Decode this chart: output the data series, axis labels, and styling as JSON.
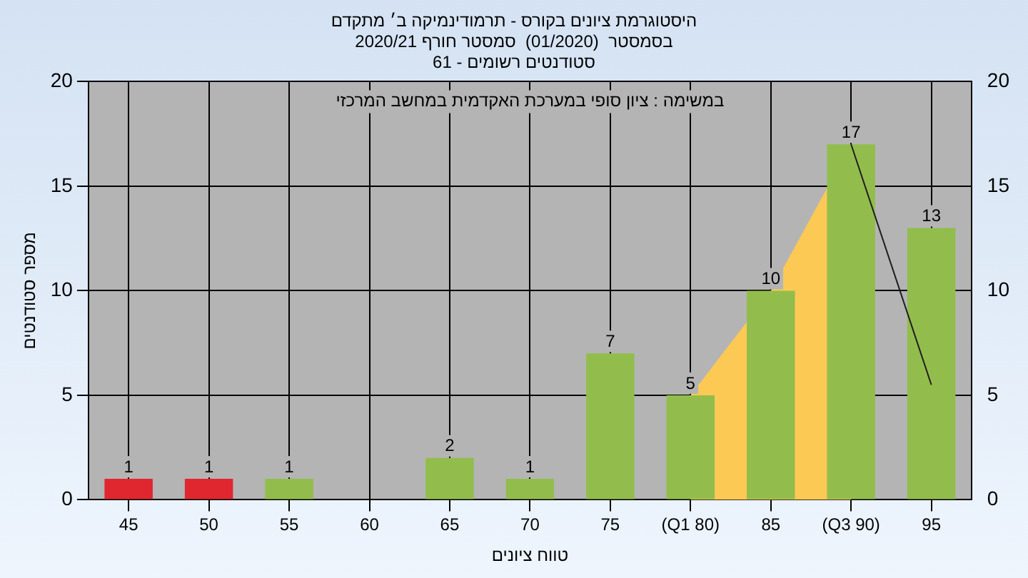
{
  "chart_data": {
    "type": "bar",
    "title": [
      "היסטוגרמת ציונים בקורס - תרמודינמיקה ב׳ מתקדם",
      "בסמסטר  (01/2020)  סמסטר חורף 2020/21",
      "סטודנטים רשומים - 61"
    ],
    "xlabel": "טווח ציונים",
    "ylabel": "מספר סטודנטים",
    "annotations": [
      "במשימה : ציון סופי במערכת האקדמית במחשב המרכזי"
    ],
    "categories": [
      "45",
      "50",
      "55",
      "60",
      "65",
      "70",
      "75",
      "(Q1 80)",
      "85",
      "(Q3 90)",
      "95"
    ],
    "series": [
      {
        "colors": [
          "#e0262e",
          "#e0262e",
          "#92bd4c",
          "#92bd4c",
          "#92bd4c",
          "#92bd4c",
          "#92bd4c",
          "#92bd4c",
          "#92bd4c",
          "#92bd4c",
          "#92bd4c"
        ],
        "values": [
          1,
          1,
          1,
          0,
          2,
          1,
          7,
          5,
          10,
          17,
          13
        ],
        "value_labels": [
          "1",
          "1",
          "1",
          null,
          "2",
          "1",
          "7",
          "5",
          "10",
          "17",
          "13"
        ]
      },
      {
        "type": "area",
        "color": "#fcc955",
        "values": [
          null,
          null,
          null,
          null,
          null,
          null,
          null,
          5,
          10,
          17,
          null
        ]
      },
      {
        "type": "line",
        "color": "#202020",
        "values": [
          null,
          null,
          null,
          null,
          null,
          null,
          null,
          null,
          null,
          17,
          5.5
        ]
      }
    ],
    "ylim": [
      0,
      20
    ],
    "yticks": [
      0,
      5,
      10,
      15,
      20
    ],
    "y2lim": [
      0,
      20
    ],
    "y2ticks": [
      0,
      5,
      10,
      15,
      20
    ],
    "grid": true,
    "legend": false
  }
}
